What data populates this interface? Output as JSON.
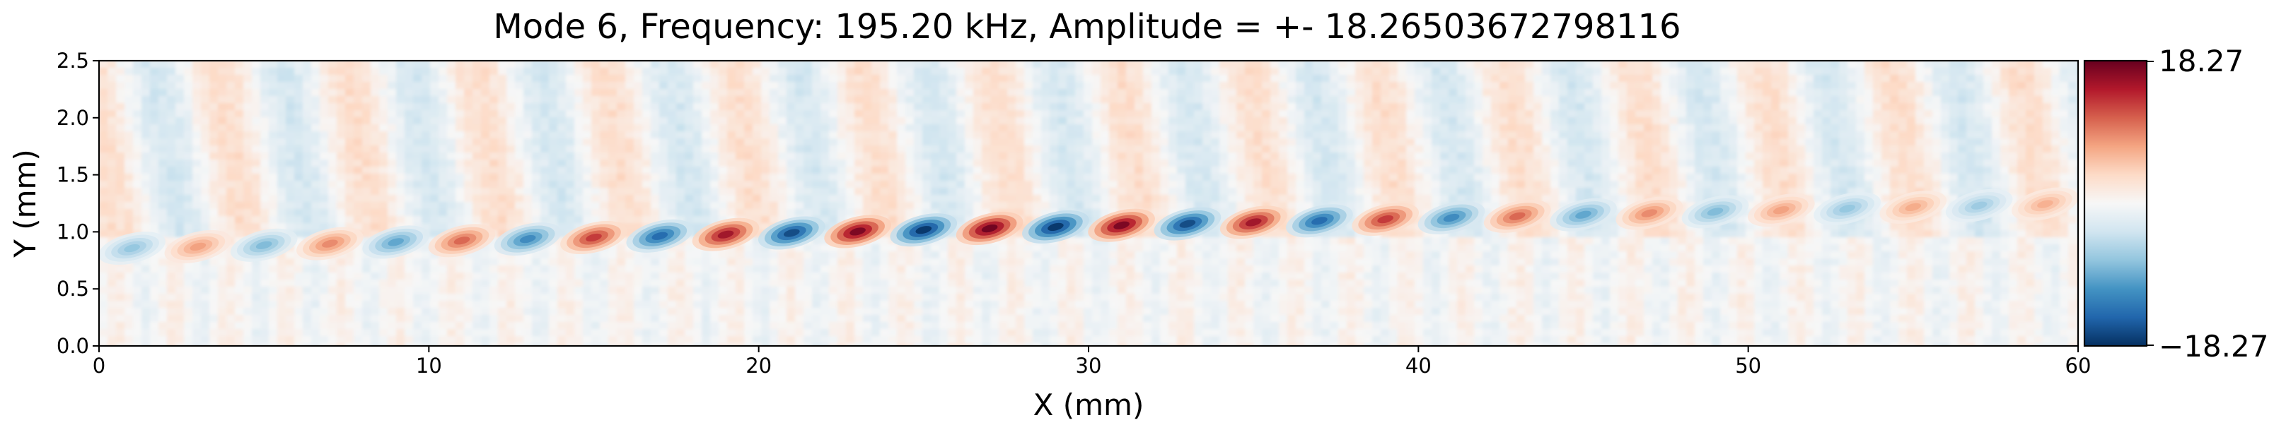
{
  "chart_data": {
    "type": "heatmap",
    "title": "Mode 6, Frequency: 195.20 kHz, Amplitude = +- 18.26503672798116",
    "xlabel": "X (mm)",
    "ylabel": "Y (mm)",
    "xlim": [
      0,
      60
    ],
    "ylim": [
      0,
      2.5
    ],
    "x_ticks": [
      0,
      10,
      20,
      30,
      40,
      50,
      60
    ],
    "x_tick_labels": [
      "0",
      "10",
      "20",
      "30",
      "40",
      "50",
      "60"
    ],
    "y_ticks": [
      0.0,
      0.5,
      1.0,
      1.5,
      2.0,
      2.5
    ],
    "y_tick_labels": [
      "0.0",
      "0.5",
      "1.0",
      "1.5",
      "2.0",
      "2.5"
    ],
    "colormap": "RdBu_r",
    "colorbar": {
      "min": -18.27,
      "max": 18.27,
      "max_label": "18.27",
      "min_label": "−18.27"
    },
    "grid": false,
    "wave_band": {
      "center_y_at_x0": 0.85,
      "center_y_at_x60": 1.25,
      "half_width_mm": 0.13,
      "wavelength_mm": 4.0,
      "peak_amplitude": 18.27,
      "peak_x_mm": 27
    },
    "colors": {
      "negative": "#053061",
      "neutral": "#f7f7f7",
      "positive": "#67001f"
    }
  }
}
